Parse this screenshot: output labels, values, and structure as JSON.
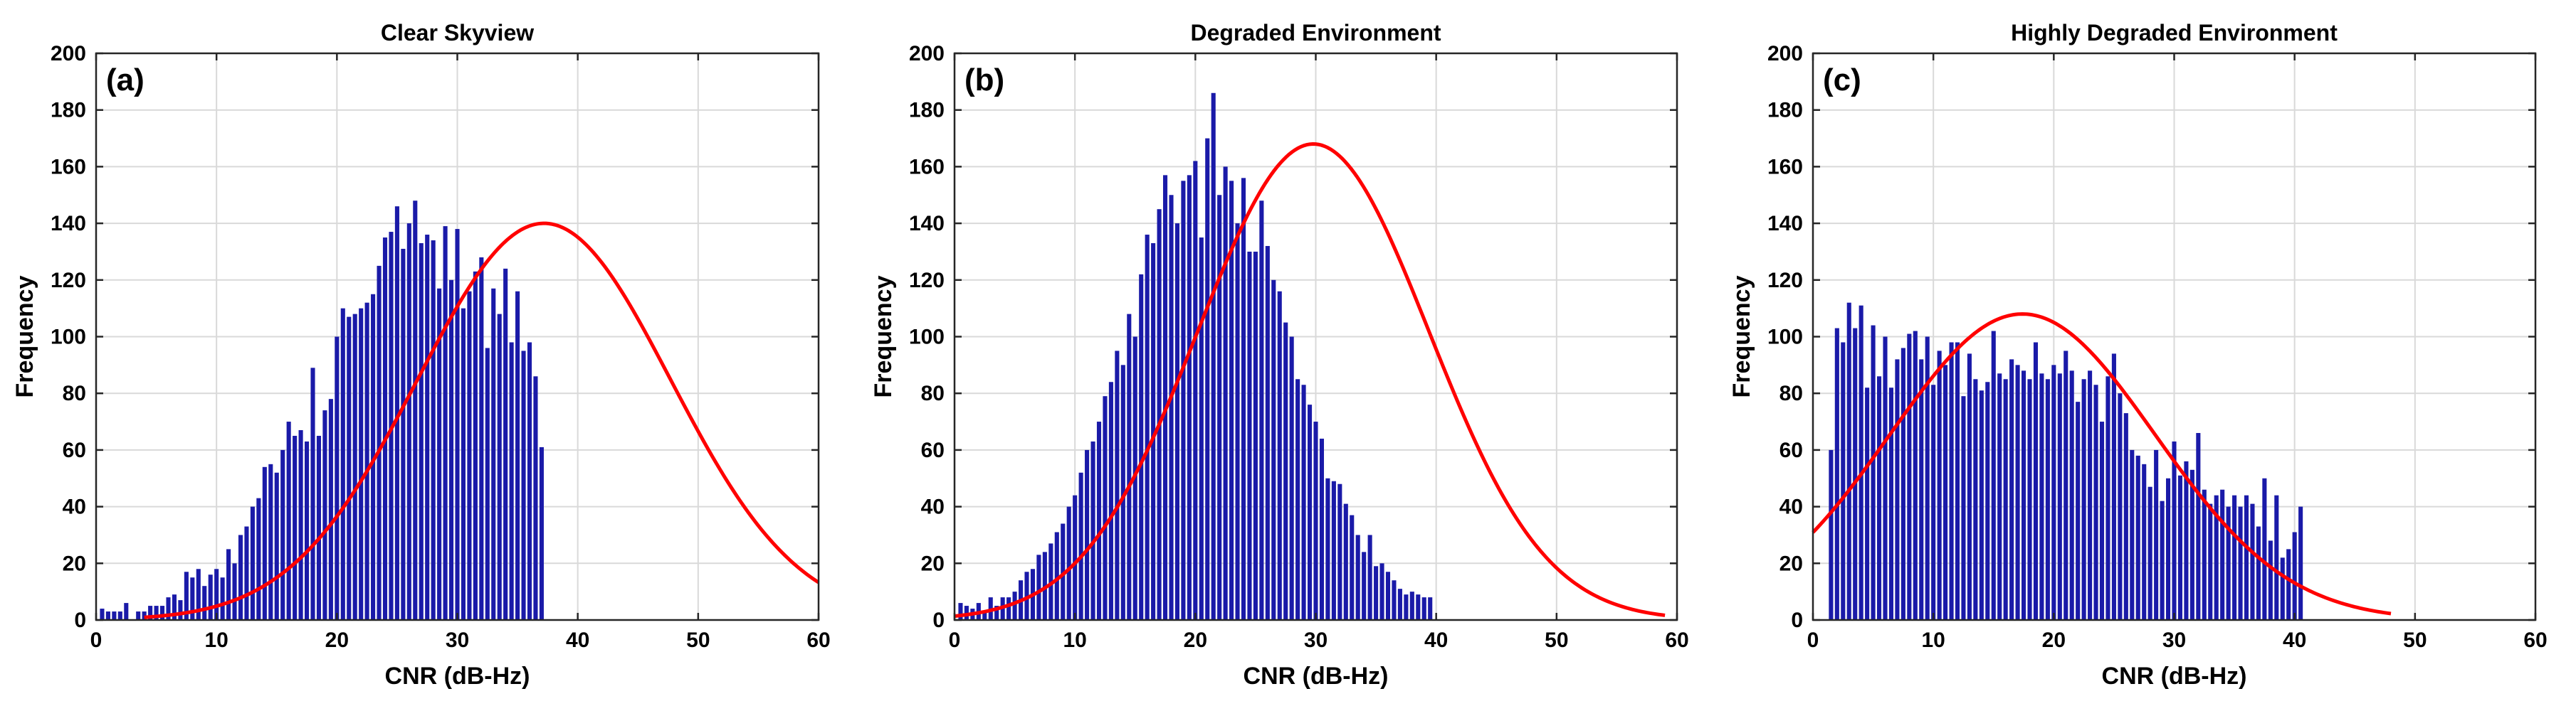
{
  "chart_data": [
    {
      "type": "bar",
      "panel_label": "(a)",
      "title": "Clear Skyview",
      "xlabel": "CNR (dB-Hz)",
      "ylabel": "Frequency",
      "xlim": [
        0,
        60
      ],
      "ylim": [
        0,
        200
      ],
      "xticks": [
        0,
        10,
        20,
        30,
        40,
        50,
        60
      ],
      "yticks": [
        0,
        20,
        40,
        60,
        80,
        100,
        120,
        140,
        160,
        180,
        200
      ],
      "bin_width": 0.5,
      "bin_start": 0.5,
      "values": [
        4,
        3,
        3,
        3,
        6,
        0,
        3,
        3,
        5,
        5,
        5,
        8,
        9,
        7,
        17,
        15,
        18,
        12,
        16,
        18,
        15,
        25,
        20,
        30,
        33,
        40,
        43,
        54,
        55,
        52,
        60,
        70,
        65,
        67,
        63,
        89,
        65,
        74,
        78,
        100,
        110,
        107,
        108,
        110,
        112,
        115,
        125,
        135,
        137,
        146,
        131,
        140,
        148,
        133,
        136,
        134,
        117,
        139,
        120,
        138,
        110,
        116,
        123,
        128,
        96,
        117,
        108,
        124,
        98,
        116,
        95,
        98,
        86,
        61
      ],
      "fit": {
        "label": "normal fit",
        "mean": 37.2,
        "sigma": 10.5,
        "peak": 140,
        "x_range": [
          4,
          60
        ]
      }
    },
    {
      "type": "bar",
      "panel_label": "(b)",
      "title": "Degraded Environment",
      "xlabel": "CNR (dB-Hz)",
      "ylabel": "Frequency",
      "xlim": [
        0,
        60
      ],
      "ylim": [
        0,
        200
      ],
      "xticks": [
        0,
        10,
        20,
        30,
        40,
        50,
        60
      ],
      "yticks": [
        0,
        20,
        40,
        60,
        80,
        100,
        120,
        140,
        160,
        180,
        200
      ],
      "bin_width": 0.5,
      "bin_start": 0.5,
      "values": [
        6,
        5,
        4,
        6,
        3,
        8,
        5,
        8,
        8,
        10,
        14,
        17,
        18,
        23,
        24,
        27,
        31,
        34,
        40,
        44,
        52,
        60,
        63,
        70,
        79,
        84,
        95,
        90,
        108,
        100,
        122,
        136,
        133,
        145,
        157,
        150,
        140,
        155,
        157,
        162,
        135,
        170,
        186,
        150,
        160,
        155,
        140,
        156,
        130,
        130,
        148,
        132,
        120,
        116,
        105,
        100,
        85,
        83,
        76,
        70,
        64,
        50,
        49,
        48,
        41,
        37,
        30,
        24,
        30,
        19,
        20,
        17,
        14,
        11,
        9,
        10,
        9,
        8,
        8
      ],
      "fit": {
        "label": "normal fit",
        "mean": 29.8,
        "sigma": 9.6,
        "peak": 168,
        "x_range": [
          0,
          59
        ]
      }
    },
    {
      "type": "bar",
      "panel_label": "(c)",
      "title": "Highly Degraded Environment",
      "xlabel": "CNR (dB-Hz)",
      "ylabel": "Frequency",
      "xlim": [
        0,
        60
      ],
      "ylim": [
        0,
        200
      ],
      "xticks": [
        0,
        10,
        20,
        30,
        40,
        50,
        60
      ],
      "yticks": [
        0,
        20,
        40,
        60,
        80,
        100,
        120,
        140,
        160,
        180,
        200
      ],
      "bin_width": 0.5,
      "bin_start": 1.5,
      "values": [
        60,
        103,
        98,
        112,
        103,
        111,
        82,
        104,
        86,
        100,
        82,
        92,
        96,
        101,
        102,
        92,
        100,
        83,
        95,
        90,
        98,
        98,
        79,
        94,
        85,
        81,
        84,
        102,
        87,
        85,
        92,
        90,
        88,
        85,
        98,
        87,
        85,
        90,
        87,
        95,
        88,
        77,
        85,
        88,
        83,
        70,
        86,
        94,
        80,
        73,
        60,
        58,
        55,
        47,
        60,
        42,
        50,
        63,
        51,
        56,
        53,
        66,
        46,
        41,
        44,
        46,
        40,
        44,
        40,
        44,
        41,
        33,
        50,
        28,
        44,
        22,
        25,
        31,
        40
      ],
      "fit": {
        "label": "normal fit",
        "mean": 17.4,
        "sigma": 11.0,
        "peak": 108,
        "x_range": [
          0,
          48
        ]
      }
    }
  ]
}
